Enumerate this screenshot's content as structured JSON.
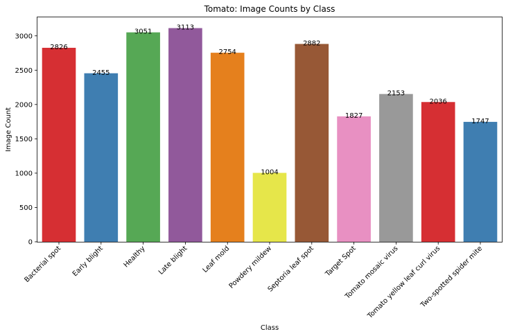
{
  "chart_data": {
    "type": "bar",
    "title": "Tomato: Image Counts by Class",
    "xlabel": "Class",
    "ylabel": "Image Count",
    "ylim": [
      0,
      3270
    ],
    "yticks": [
      0,
      500,
      1000,
      1500,
      2000,
      2500,
      3000
    ],
    "grid": false,
    "legend": "none",
    "categories": [
      "Bacterial spot",
      "Early blight",
      "Healthy",
      "Late blight",
      "Leaf mold",
      "Powdery mildew",
      "Septoria leaf spot",
      "Target Spot",
      "Tomato mosaic virus",
      "Tomato yellow leaf curl virus",
      "Two-spotted spider mite"
    ],
    "values": [
      2826,
      2455,
      3051,
      3113,
      2754,
      1004,
      2882,
      1827,
      2153,
      2036,
      1747
    ],
    "colors": [
      "#d62f33",
      "#3f7eb1",
      "#56a855",
      "#91599b",
      "#e5801d",
      "#e6e64a",
      "#975836",
      "#e890c2",
      "#999999",
      "#d62f33",
      "#3f7eb1"
    ]
  }
}
